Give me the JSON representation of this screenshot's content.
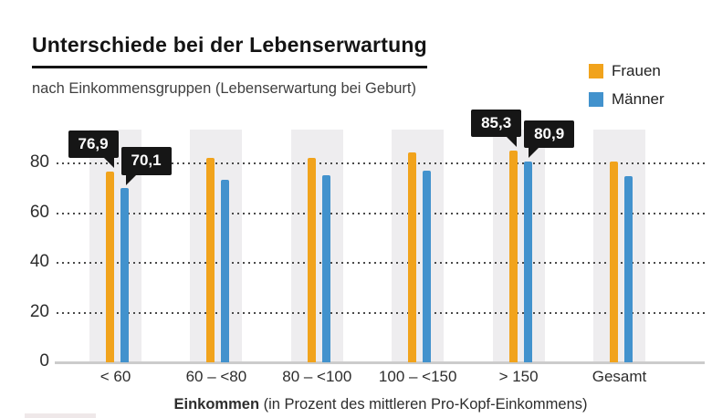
{
  "chart_data": {
    "type": "bar",
    "title": "Unterschiede bei der Lebenserwartung",
    "subtitle": "nach Einkommensgruppen (Lebenserwartung bei Geburt)",
    "categories": [
      "< 60",
      "60 – <80",
      "80 – <100",
      "100 – <150",
      "> 150",
      "Gesamt"
    ],
    "series": [
      {
        "name": "Frauen",
        "color": "#F1A31C",
        "values": [
          76.9,
          82.2,
          82.3,
          84.7,
          85.3,
          81.0
        ]
      },
      {
        "name": "Männer",
        "color": "#4292CD",
        "values": [
          70.1,
          73.6,
          75.2,
          77.1,
          80.9,
          75.1
        ]
      }
    ],
    "yticks": [
      0,
      20,
      40,
      60,
      80
    ],
    "ylim": [
      0,
      94
    ],
    "grid": "horizontal-dotted",
    "legend_position": "top-right",
    "xlabel_bold": "Einkommen",
    "xlabel_rest": " (in Prozent des mittleren Pro-Kopf-Einkommens)",
    "annotations": [
      {
        "category": "< 60",
        "series": "Frauen",
        "label": "76,9",
        "value": 76.9,
        "pointer": "right"
      },
      {
        "category": "< 60",
        "series": "Männer",
        "label": "70,1",
        "value": 70.1,
        "pointer": "left"
      },
      {
        "category": "> 150",
        "series": "Frauen",
        "label": "85,3",
        "value": 85.3,
        "pointer": "right"
      },
      {
        "category": "> 150",
        "series": "Männer",
        "label": "80,9",
        "value": 80.9,
        "pointer": "left"
      }
    ]
  }
}
